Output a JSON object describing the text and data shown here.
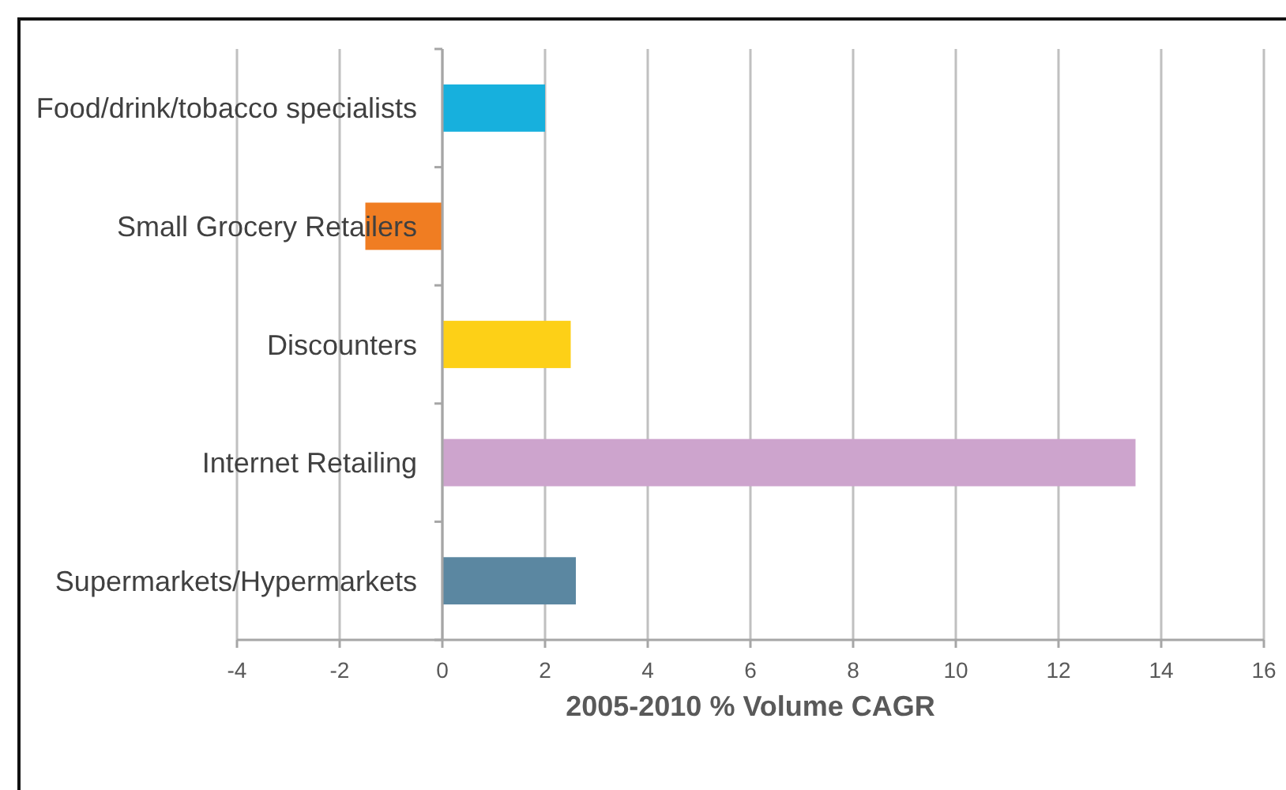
{
  "chart_data": {
    "type": "bar",
    "orientation": "horizontal",
    "categories": [
      "Food/drink/tobacco specialists",
      "Small Grocery Retailers",
      "Discounters",
      "Internet Retailing",
      "Supermarkets/Hypermarkets"
    ],
    "values": [
      2.0,
      -1.5,
      2.5,
      13.5,
      2.6
    ],
    "colors": [
      "#17b0dd",
      "#f07d22",
      "#fdd017",
      "#cda4cd",
      "#5b87a1"
    ],
    "xlabel": "2005-2010 % Volume CAGR",
    "xlim": [
      -4,
      16
    ],
    "xticks": [
      -4,
      -2,
      0,
      2,
      4,
      6,
      8,
      10,
      12,
      14,
      16
    ],
    "grid": "x"
  }
}
